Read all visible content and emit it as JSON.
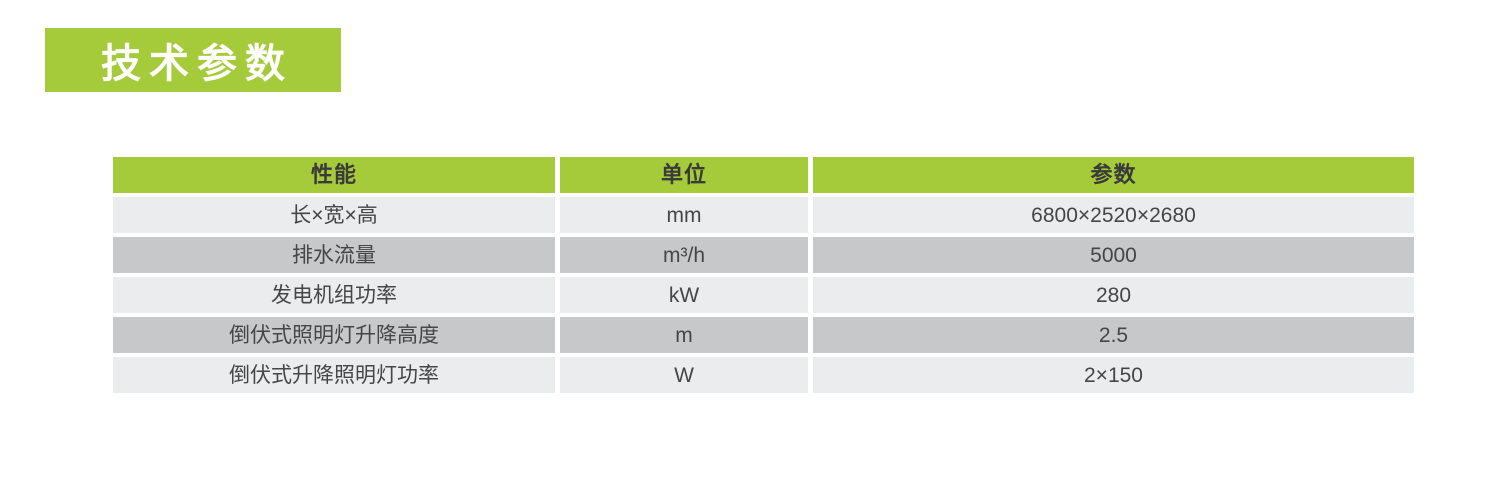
{
  "colors": {
    "page_bg": "#ffffff",
    "accent_green": "#a5cb3a",
    "title_text": "#ffffff",
    "header_text": "#3a3a3a",
    "body_text": "#454647",
    "row_light": "#ebeced",
    "row_dark": "#c7c8c9"
  },
  "title": {
    "label": "技术参数"
  },
  "table": {
    "headers": [
      "性能",
      "单位",
      "参数"
    ],
    "rows": [
      {
        "name": "长×宽×高",
        "unit": "mm",
        "value": "6800×2520×2680"
      },
      {
        "name": "排水流量",
        "unit": "m³/h",
        "value": "5000"
      },
      {
        "name": "发电机组功率",
        "unit": "kW",
        "value": "280"
      },
      {
        "name": "倒伏式照明灯升降高度",
        "unit": "m",
        "value": "2.5"
      },
      {
        "name": "倒伏式升降照明灯功率",
        "unit": "W",
        "value": "2×150"
      }
    ]
  }
}
